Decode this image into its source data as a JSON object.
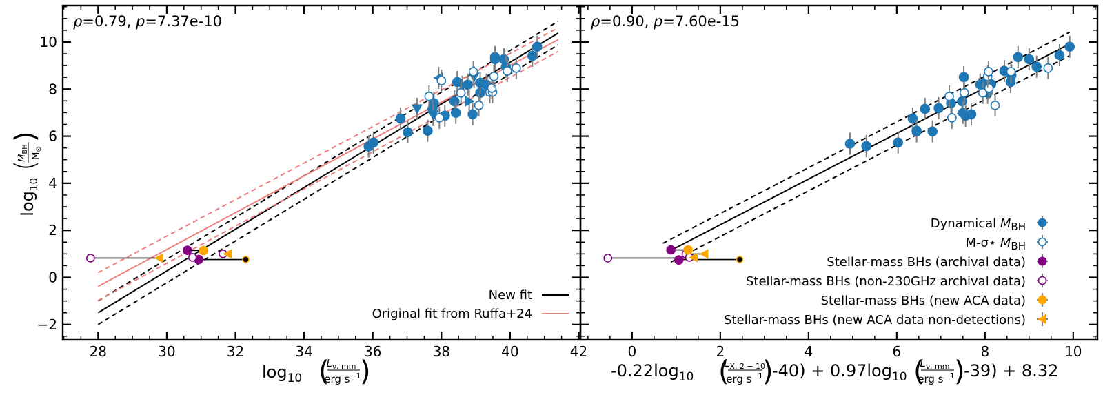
{
  "chart_data": [
    {
      "type": "scatter",
      "panel": "left",
      "annotation": {
        "rho_label": "ρ",
        "rho": "0.79",
        "p_label": "p",
        "p": "7.37e-10"
      },
      "xlabel": {
        "prefix": "log",
        "sub": "10",
        "num": "L",
        "num_sub": "ν, mm",
        "den": "erg s",
        "den_sup": "−1"
      },
      "ylabel": {
        "prefix": "log",
        "sub": "10",
        "num": "M",
        "num_sub": "BH",
        "den": "M",
        "den_sub": "⊙"
      },
      "xlim": [
        26.97,
        42.05
      ],
      "ylim": [
        -2.65,
        11.55
      ],
      "xticks": [
        28,
        30,
        32,
        34,
        36,
        38,
        40,
        42
      ],
      "yticks": [
        -2,
        0,
        2,
        4,
        6,
        8,
        10
      ],
      "legend": {
        "position": "lower-right",
        "entries": [
          {
            "label": "New fit",
            "color": "#000000",
            "style": "solid"
          },
          {
            "label": "Original fit from Ruffa+24",
            "color": "#f08080",
            "style": "solid"
          }
        ]
      },
      "lines": [
        {
          "name": "new-fit",
          "color": "#000000",
          "dash": false,
          "x": [
            28,
            41.4
          ],
          "y": [
            -1.5,
            10.38
          ]
        },
        {
          "name": "new-fit-upper",
          "color": "#000000",
          "dash": true,
          "x": [
            28,
            41.4
          ],
          "y": [
            -1.0,
            10.88
          ]
        },
        {
          "name": "new-fit-lower",
          "color": "#000000",
          "dash": true,
          "x": [
            28,
            41.4
          ],
          "y": [
            -2.0,
            9.88
          ]
        },
        {
          "name": "ruffa-fit",
          "color": "#f08080",
          "dash": false,
          "x": [
            28,
            41.4
          ],
          "y": [
            -0.38,
            10.1
          ]
        },
        {
          "name": "ruffa-fit-upper",
          "color": "#f08080",
          "dash": true,
          "x": [
            28,
            41.4
          ],
          "y": [
            0.2,
            10.6
          ]
        },
        {
          "name": "ruffa-fit-lower",
          "color": "#f08080",
          "dash": true,
          "x": [
            28,
            41.4
          ],
          "y": [
            -0.98,
            9.6
          ]
        }
      ],
      "points": {
        "dynamical": [
          [
            35.88,
            5.56
          ],
          [
            36.02,
            5.73
          ],
          [
            36.81,
            6.75
          ],
          [
            37.02,
            6.17
          ],
          [
            37.6,
            6.23
          ],
          [
            37.78,
            7.4
          ],
          [
            37.74,
            7.16
          ],
          [
            38.1,
            6.87
          ],
          [
            38.38,
            7.48
          ],
          [
            38.42,
            6.99
          ],
          [
            38.46,
            8.3
          ],
          [
            38.77,
            8.19
          ],
          [
            38.91,
            6.93
          ],
          [
            39.13,
            7.84
          ],
          [
            39.13,
            8.27
          ],
          [
            39.31,
            8.19
          ],
          [
            39.33,
            8.16
          ],
          [
            39.56,
            9.36
          ],
          [
            39.56,
            9.27
          ],
          [
            39.82,
            9.27
          ],
          [
            39.88,
            8.95
          ],
          [
            40.65,
            9.41
          ],
          [
            40.79,
            9.8
          ]
        ],
        "dynamical_triangle_down": [
          [
            37.29,
            7.16
          ],
          [
            37.76,
            6.9
          ],
          [
            38.61,
            8.1
          ],
          [
            38.95,
            8.51
          ]
        ],
        "dynamical_triangle_left": [
          [
            37.92,
            8.48
          ]
        ],
        "dynamical_triangle_right": [
          [
            38.81,
            7.48
          ]
        ],
        "m_sigma": [
          [
            37.64,
            7.69
          ],
          [
            37.94,
            6.78
          ],
          [
            38.0,
            8.36
          ],
          [
            38.57,
            7.84
          ],
          [
            38.93,
            8.74
          ],
          [
            39.09,
            7.31
          ],
          [
            39.41,
            7.87
          ],
          [
            39.49,
            7.87
          ],
          [
            39.47,
            8.04
          ],
          [
            39.53,
            8.54
          ],
          [
            39.92,
            8.77
          ],
          [
            40.18,
            8.89
          ]
        ],
        "stellar_archival": [
          [
            30.6,
            1.15
          ],
          [
            30.93,
            0.76
          ]
        ],
        "stellar_non230": [
          [
            27.78,
            0.82
          ],
          [
            30.75,
            0.85
          ],
          [
            31.64,
            1.0
          ]
        ],
        "stellar_aca": [
          [
            31.07,
            1.14
          ]
        ],
        "stellar_aca_black": [
          [
            32.3,
            0.76
          ]
        ],
        "stellar_aca_nondet": [
          [
            29.78,
            0.82
          ],
          [
            31.78,
            1.0
          ]
        ],
        "connectors": [
          [
            [
              30.6,
              1.15
            ],
            [
              31.07,
              1.14
            ]
          ],
          [
            [
              30.93,
              0.76
            ],
            [
              32.3,
              0.76
            ]
          ],
          [
            [
              27.78,
              0.82
            ],
            [
              29.78,
              0.82
            ]
          ],
          [
            [
              31.64,
              1.0
            ],
            [
              31.78,
              1.0
            ]
          ]
        ]
      }
    },
    {
      "type": "scatter",
      "panel": "right",
      "annotation": {
        "rho_label": "ρ",
        "rho": "0.90",
        "p_label": "p",
        "p": "7.60e-15"
      },
      "xlabel": {
        "part1": "-0.22log",
        "part1_sub": "10",
        "f1_num": "L",
        "f1_num_sub": "X, 2 − 10",
        "f1_den": "erg s",
        "f1_den_sup": "−1",
        "part2": "-40) + 0.97log",
        "part2_sub": "10",
        "f2_num": "L",
        "f2_num_sub": "ν, mm",
        "f2_den": "erg s",
        "f2_den_sup": "−1",
        "part3": "-39) + 8.32"
      },
      "xlim": [
        -1.17,
        10.55
      ],
      "ylim": [
        -2.65,
        11.55
      ],
      "xticks": [
        0,
        2,
        4,
        6,
        8,
        10
      ],
      "yticks": [
        -2,
        0,
        2,
        4,
        6,
        8,
        10
      ],
      "legend": {
        "position": "lower-right",
        "entries": [
          {
            "label": "Dynamical ",
            "label_math": "M",
            "label_sub": "BH",
            "marker": "filled-circle",
            "color": "#1f77b4"
          },
          {
            "label": "M-σ⋆ ",
            "label_math": "M",
            "label_sub": "BH",
            "marker": "open-circle",
            "color": "#1f77b4"
          },
          {
            "label": "Stellar-mass BHs (archival data)",
            "marker": "filled-circle",
            "color": "#800080"
          },
          {
            "label": "Stellar-mass BHs (non-230GHz archival data)",
            "marker": "open-circle",
            "color": "#800080"
          },
          {
            "label": "Stellar-mass BHs (new ACA data)",
            "marker": "filled-circle",
            "color": "#ffa500"
          },
          {
            "label": "Stellar-mass BHs (new ACA data non-detections)",
            "marker": "triangle-left",
            "color": "#ffa500"
          }
        ]
      },
      "lines": [
        {
          "name": "fit",
          "color": "#000000",
          "dash": false,
          "x": [
            0.88,
            9.92
          ],
          "y": [
            1.15,
            9.92
          ]
        },
        {
          "name": "fit-upper",
          "color": "#000000",
          "dash": true,
          "x": [
            0.7,
            9.92
          ],
          "y": [
            1.45,
            10.42
          ]
        },
        {
          "name": "fit-lower",
          "color": "#000000",
          "dash": true,
          "x": [
            0.88,
            9.92
          ],
          "y": [
            0.65,
            9.42
          ]
        }
      ],
      "points": {
        "dynamical": [
          [
            4.94,
            5.68
          ],
          [
            5.31,
            5.58
          ],
          [
            6.03,
            5.73
          ],
          [
            6.45,
            6.2
          ],
          [
            6.36,
            6.75
          ],
          [
            6.45,
            6.23
          ],
          [
            6.64,
            7.16
          ],
          [
            6.81,
            6.2
          ],
          [
            6.95,
            7.19
          ],
          [
            7.23,
            7.4
          ],
          [
            7.48,
            7.48
          ],
          [
            7.5,
            6.99
          ],
          [
            7.56,
            6.87
          ],
          [
            7.69,
            6.93
          ],
          [
            7.52,
            8.51
          ],
          [
            7.89,
            8.19
          ],
          [
            8.0,
            8.27
          ],
          [
            8.06,
            7.84
          ],
          [
            8.14,
            8.21
          ],
          [
            8.44,
            8.77
          ],
          [
            8.6,
            8.59
          ],
          [
            8.58,
            8.3
          ],
          [
            8.75,
            9.36
          ],
          [
            9.0,
            9.27
          ],
          [
            9.17,
            8.95
          ],
          [
            9.69,
            9.44
          ],
          [
            9.92,
            9.8
          ]
        ],
        "m_sigma": [
          [
            7.19,
            7.69
          ],
          [
            7.25,
            6.78
          ],
          [
            7.53,
            7.84
          ],
          [
            7.95,
            7.84
          ],
          [
            8.09,
            8.04
          ],
          [
            8.06,
            8.54
          ],
          [
            8.08,
            8.74
          ],
          [
            8.23,
            7.31
          ],
          [
            8.59,
            8.74
          ],
          [
            9.43,
            8.89
          ]
        ],
        "stellar_archival": [
          [
            0.88,
            1.17
          ],
          [
            1.06,
            0.74
          ]
        ],
        "stellar_non230": [
          [
            -0.55,
            0.82
          ],
          [
            1.22,
            0.99
          ],
          [
            1.3,
            0.85
          ]
        ],
        "stellar_aca": [
          [
            1.27,
            1.17
          ]
        ],
        "stellar_aca_black": [
          [
            2.44,
            0.76
          ]
        ],
        "stellar_aca_nondet": [
          [
            1.64,
            1.0
          ],
          [
            1.4,
            0.85
          ]
        ],
        "connectors": [
          [
            [
              0.88,
              1.17
            ],
            [
              1.27,
              1.17
            ]
          ],
          [
            [
              1.06,
              0.76
            ],
            [
              2.44,
              0.76
            ]
          ],
          [
            [
              -0.55,
              0.82
            ],
            [
              1.3,
              0.82
            ]
          ],
          [
            [
              1.22,
              0.99
            ],
            [
              1.64,
              1.0
            ]
          ]
        ]
      }
    }
  ]
}
